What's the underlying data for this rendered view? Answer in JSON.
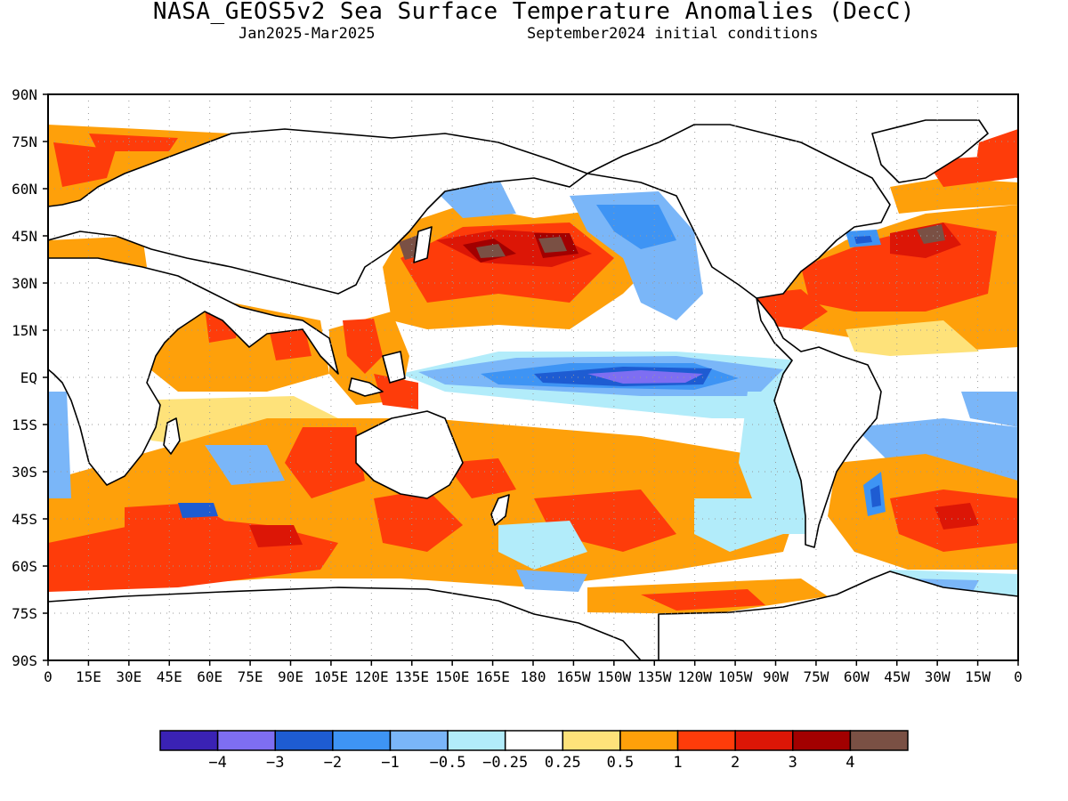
{
  "title": "NASA_GEOS5v2 Sea Surface Temperature Anomalies (DecC)",
  "subtitle_left": "Jan2025-Mar2025",
  "subtitle_right": "September2024 initial conditions",
  "lat_labels": [
    "90N",
    "75N",
    "60N",
    "45N",
    "30N",
    "15N",
    "EQ",
    "15S",
    "30S",
    "45S",
    "60S",
    "75S",
    "90S"
  ],
  "lon_labels": [
    "0",
    "15E",
    "30E",
    "45E",
    "60E",
    "75E",
    "90E",
    "105E",
    "120E",
    "135E",
    "150E",
    "165E",
    "180",
    "165W",
    "150W",
    "135W",
    "120W",
    "105W",
    "90W",
    "75W",
    "60W",
    "45W",
    "30W",
    "15W",
    "0"
  ],
  "colorbar": {
    "colors": [
      "#3a22b4",
      "#7e6ef2",
      "#1e5cd2",
      "#3e94f4",
      "#7ab6f8",
      "#b2ecfa",
      "#ffffff",
      "#fee27a",
      "#fea00a",
      "#fe3c0a",
      "#dc1606",
      "#a20000",
      "#7a5044"
    ],
    "labels": [
      "-4",
      "-3",
      "-2",
      "-1",
      "-0.5",
      "-0.25",
      "0.25",
      "0.5",
      "1",
      "2",
      "3",
      "4"
    ]
  },
  "colors": {
    "frame": "#000000",
    "grid": "#9a9a9a",
    "land_outline": "#000000"
  }
}
